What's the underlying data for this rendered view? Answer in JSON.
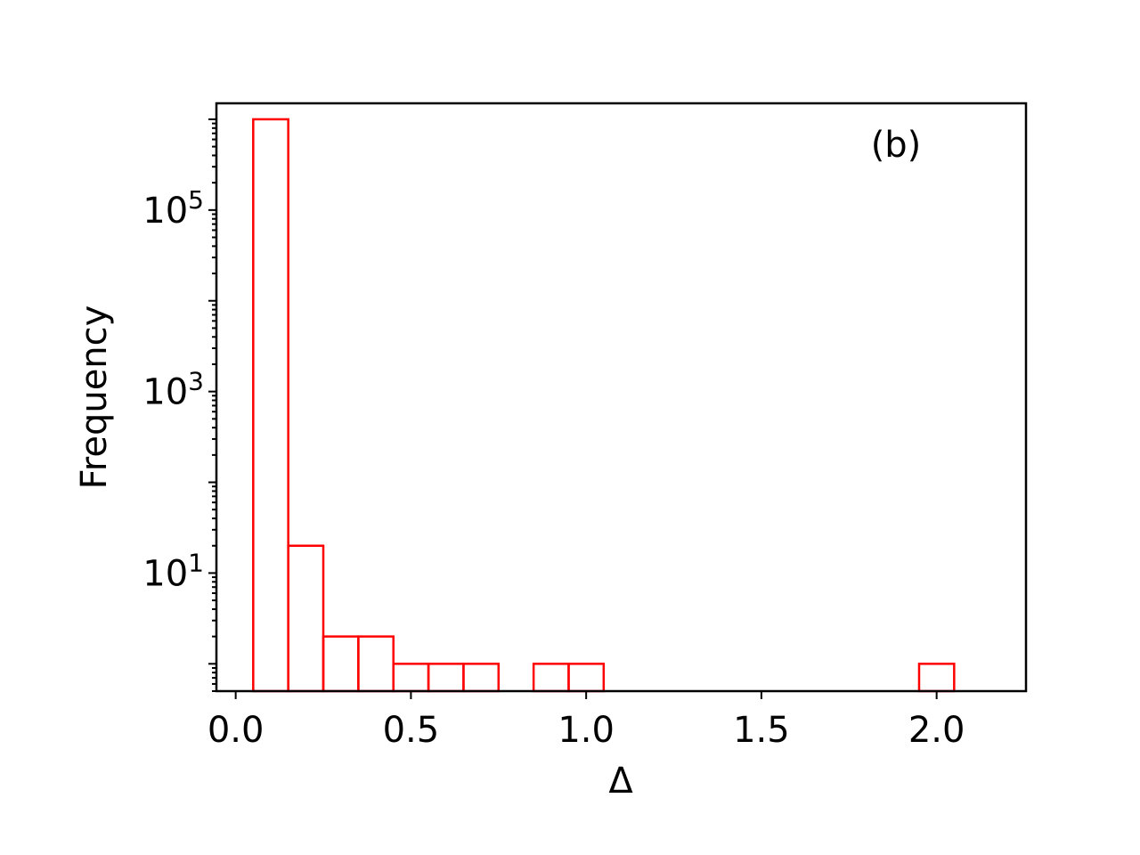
{
  "chart_data": {
    "type": "bar",
    "annotation": "(b)",
    "xlabel": "Δ",
    "ylabel": "Frequency",
    "xlim": [
      -0.055,
      2.255
    ],
    "ylim": [
      0.5,
      1500000
    ],
    "yscale": "log",
    "grid": false,
    "legend": "none",
    "bar_color": "#ff0000",
    "bar_fill": "none",
    "bin_width": 0.1,
    "x_ticks": [
      {
        "value": 0.0,
        "label": "0.0"
      },
      {
        "value": 0.5,
        "label": "0.5"
      },
      {
        "value": 1.0,
        "label": "1.0"
      },
      {
        "value": 1.5,
        "label": "1.5"
      },
      {
        "value": 2.0,
        "label": "2.0"
      }
    ],
    "y_ticks": [
      {
        "value": 10,
        "base": "10",
        "exp": "1"
      },
      {
        "value": 1000,
        "base": "10",
        "exp": "3"
      },
      {
        "value": 100000,
        "base": "10",
        "exp": "5"
      }
    ],
    "bins": [
      {
        "x0": 0.05,
        "x1": 0.15,
        "count": 1000000
      },
      {
        "x0": 0.15,
        "x1": 0.25,
        "count": 20
      },
      {
        "x0": 0.25,
        "x1": 0.35,
        "count": 2
      },
      {
        "x0": 0.35,
        "x1": 0.45,
        "count": 2
      },
      {
        "x0": 0.45,
        "x1": 0.55,
        "count": 1
      },
      {
        "x0": 0.55,
        "x1": 0.65,
        "count": 1
      },
      {
        "x0": 0.65,
        "x1": 0.75,
        "count": 1
      },
      {
        "x0": 0.85,
        "x1": 0.95,
        "count": 1
      },
      {
        "x0": 0.95,
        "x1": 1.05,
        "count": 1
      },
      {
        "x0": 1.95,
        "x1": 2.05,
        "count": 1
      }
    ]
  }
}
